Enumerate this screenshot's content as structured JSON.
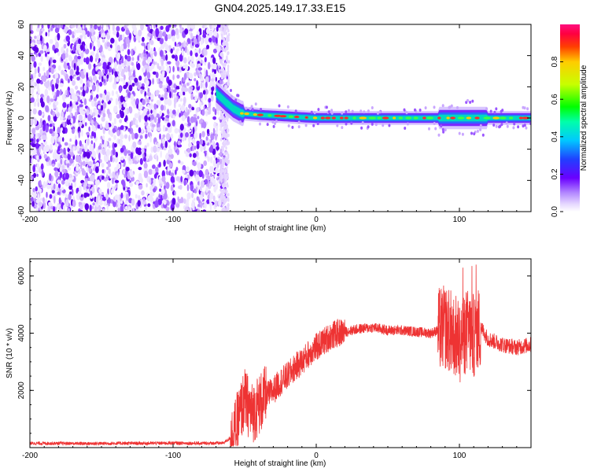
{
  "title": "GN04.2025.149.17.33.E15",
  "chart_data": [
    {
      "type": "heatmap",
      "xlabel": "Height of straight line (km)",
      "ylabel": "Frequency (Hz)",
      "xlim": [
        -200,
        150
      ],
      "ylim": [
        -60,
        60
      ],
      "xticks": [
        -200,
        -100,
        0,
        100
      ],
      "yticks": [
        60,
        40,
        20,
        0,
        -20,
        -40,
        -60
      ],
      "noise_region_x": [
        -200,
        -62
      ],
      "signal_band": [
        {
          "x": -70,
          "y": 16
        },
        {
          "x": -63,
          "y": 10
        },
        {
          "x": -58,
          "y": 6
        },
        {
          "x": -52,
          "y": 3
        },
        {
          "x": -40,
          "y": 2
        },
        {
          "x": -20,
          "y": 1
        },
        {
          "x": 0,
          "y": 0
        },
        {
          "x": 50,
          "y": 0
        },
        {
          "x": 90,
          "y": 0
        },
        {
          "x": 150,
          "y": 0
        }
      ],
      "colorbar": {
        "label": "Normalized spectral amplitude",
        "range": [
          0,
          1
        ],
        "ticks": [
          "0.0",
          "0.2",
          "0.4",
          "0.6",
          "0.8"
        ]
      },
      "grid": false
    },
    {
      "type": "line",
      "xlabel": "Height of straight line (km)",
      "ylabel": "SNR (10 * v/v)",
      "xlim": [
        -200,
        150
      ],
      "ylim": [
        0,
        6600
      ],
      "xticks": [
        -200,
        -100,
        0,
        100
      ],
      "yticks": [
        2000,
        4000,
        6000
      ],
      "color": "#ee3333",
      "series": [
        {
          "x": [
            -200,
            -180,
            -160,
            -140,
            -120,
            -100,
            -80,
            -65,
            -58,
            -50,
            -45,
            -40,
            -35,
            -30,
            -25,
            -20,
            -15,
            -10,
            -5,
            0,
            5,
            10,
            15,
            20,
            25,
            30,
            40,
            50,
            60,
            70,
            80,
            85,
            90,
            95,
            100,
            105,
            110,
            115,
            120,
            130,
            140,
            150
          ],
          "values": [
            150,
            150,
            140,
            150,
            150,
            160,
            150,
            160,
            400,
            1700,
            1200,
            1500,
            1800,
            2000,
            2300,
            2500,
            2800,
            3000,
            3300,
            3500,
            3700,
            3900,
            4000,
            4050,
            4100,
            4150,
            4200,
            4100,
            4100,
            4050,
            4000,
            4100,
            4200,
            4000,
            3700,
            4100,
            3900,
            4200,
            3800,
            3600,
            3500,
            3600
          ]
        }
      ],
      "grid": false
    }
  ]
}
